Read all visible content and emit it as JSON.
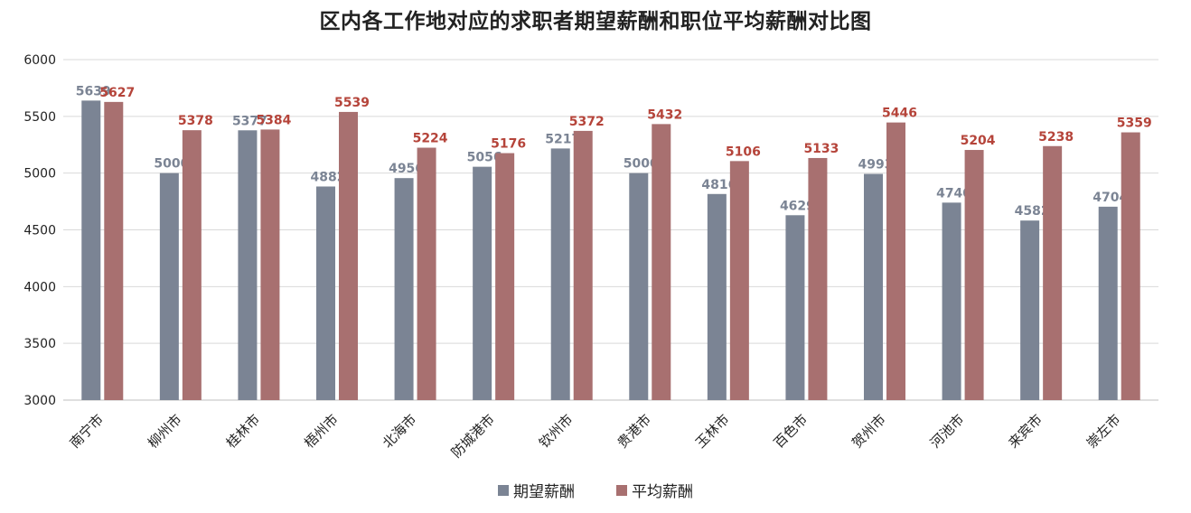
{
  "chart_data": {
    "type": "bar",
    "title": "区内各工作地对应的求职者期望薪酬和职位平均薪酬对比图",
    "categories": [
      "南宁市",
      "柳州市",
      "桂林市",
      "梧州市",
      "北海市",
      "防城港市",
      "钦州市",
      "贵港市",
      "玉林市",
      "百色市",
      "贺州市",
      "河池市",
      "来宾市",
      "崇左市"
    ],
    "series": [
      {
        "name": "期望薪酬",
        "color": "#7b8494",
        "label_color": "#7b8494",
        "values": [
          5639,
          5000,
          5377,
          4882,
          4956,
          5056,
          5217,
          5000,
          4816,
          4629,
          4993,
          4740,
          4582,
          4704
        ]
      },
      {
        "name": "平均薪酬",
        "color": "#a87070",
        "label_color": "#b5443a",
        "values": [
          5627,
          5378,
          5384,
          5539,
          5224,
          5176,
          5372,
          5432,
          5106,
          5133,
          5446,
          5204,
          5238,
          5359
        ]
      }
    ],
    "ylim": [
      3000,
      6000
    ],
    "yticks": [
      3000,
      3500,
      4000,
      4500,
      5000,
      5500,
      6000
    ],
    "grid": true,
    "legend_position": "bottom"
  }
}
